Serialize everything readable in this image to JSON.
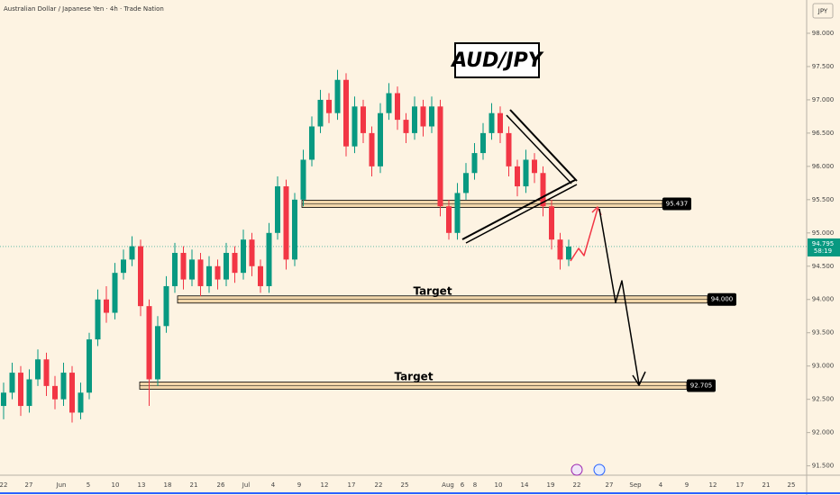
{
  "chart_data": {
    "type": "candlestick",
    "title": "Australian Dollar / Japanese Yen · 4h · Trade Nation",
    "symbol_label": "AUD/JPY",
    "currency": "JPY",
    "up_color": "#089981",
    "down_color": "#f23645",
    "open": [
      92.4,
      92.6,
      92.9,
      92.4,
      92.8,
      93.1,
      92.7,
      92.5,
      92.9,
      92.3,
      92.6,
      93.4,
      94.0,
      93.8,
      94.4,
      94.6,
      94.8,
      93.9,
      92.8,
      93.6,
      94.2,
      94.7,
      94.3,
      94.6,
      94.2,
      94.5,
      94.3,
      94.7,
      94.4,
      94.9,
      94.5,
      94.2,
      95.0,
      95.7,
      94.6,
      95.5,
      96.1,
      96.6,
      97.0,
      96.8,
      97.3,
      96.3,
      96.9,
      96.5,
      96.0,
      96.8,
      97.1,
      96.7,
      96.5,
      96.9,
      96.6,
      96.9,
      95.4,
      95.0,
      95.6,
      95.9,
      96.2,
      96.5,
      96.8,
      96.5,
      96.0,
      95.7,
      96.1,
      95.9,
      95.4,
      94.9,
      94.6
    ],
    "high": [
      92.75,
      93.05,
      93.0,
      92.95,
      93.25,
      93.2,
      92.85,
      93.05,
      93.0,
      92.75,
      93.5,
      94.15,
      94.2,
      94.55,
      94.75,
      94.95,
      94.9,
      94.0,
      93.75,
      94.35,
      94.85,
      94.8,
      94.75,
      94.7,
      94.65,
      94.6,
      94.85,
      94.8,
      95.05,
      95.0,
      94.6,
      95.15,
      95.85,
      95.8,
      95.6,
      96.25,
      96.75,
      97.15,
      97.1,
      97.45,
      97.4,
      97.05,
      97.0,
      96.6,
      96.95,
      97.25,
      97.2,
      96.8,
      97.05,
      97.0,
      97.05,
      97.0,
      95.5,
      95.75,
      96.05,
      96.35,
      96.65,
      96.95,
      96.9,
      96.6,
      96.1,
      96.25,
      96.2,
      96.0,
      95.5,
      95.0,
      94.9
    ],
    "low": [
      92.2,
      92.5,
      92.25,
      92.3,
      92.7,
      92.55,
      92.35,
      92.4,
      92.15,
      92.2,
      92.5,
      93.3,
      93.65,
      93.7,
      94.3,
      94.5,
      93.75,
      92.4,
      92.7,
      93.5,
      94.1,
      94.15,
      94.2,
      94.05,
      94.1,
      94.15,
      94.2,
      94.25,
      94.3,
      94.35,
      94.1,
      94.1,
      94.9,
      94.45,
      94.5,
      95.4,
      96.0,
      96.5,
      96.65,
      96.7,
      96.15,
      96.2,
      96.35,
      95.85,
      95.9,
      96.7,
      96.55,
      96.35,
      96.4,
      96.45,
      96.5,
      95.25,
      94.9,
      94.9,
      95.5,
      95.8,
      96.1,
      96.4,
      96.35,
      95.85,
      95.55,
      95.6,
      95.75,
      95.25,
      94.75,
      94.45,
      94.5
    ],
    "close": [
      92.6,
      92.9,
      92.4,
      92.8,
      93.1,
      92.7,
      92.5,
      92.9,
      92.3,
      92.6,
      93.4,
      94.0,
      93.8,
      94.4,
      94.6,
      94.8,
      93.9,
      92.8,
      93.6,
      94.2,
      94.7,
      94.3,
      94.6,
      94.2,
      94.5,
      94.3,
      94.7,
      94.4,
      94.9,
      94.5,
      94.2,
      95.0,
      95.7,
      94.6,
      95.5,
      96.1,
      96.6,
      97.0,
      96.8,
      97.3,
      96.3,
      96.9,
      96.5,
      96.0,
      96.8,
      97.1,
      96.7,
      96.5,
      96.9,
      96.6,
      96.9,
      95.4,
      95.0,
      95.6,
      95.9,
      96.2,
      96.5,
      96.8,
      96.5,
      96.0,
      95.7,
      96.1,
      95.9,
      95.4,
      94.9,
      94.6,
      94.795
    ],
    "ylim": [
      91.4,
      98.5
    ],
    "yticks": [
      {
        "value": 98.0,
        "label": "98.000"
      },
      {
        "value": 97.5,
        "label": "97.500"
      },
      {
        "value": 97.0,
        "label": "97.000"
      },
      {
        "value": 96.5,
        "label": "96.500"
      },
      {
        "value": 96.0,
        "label": "96.000"
      },
      {
        "value": 95.5,
        "label": "95.500"
      },
      {
        "value": 95.0,
        "label": "95.000"
      },
      {
        "value": 94.5,
        "label": "94.500"
      },
      {
        "value": 94.0,
        "label": "94.000"
      },
      {
        "value": 93.5,
        "label": "93.500"
      },
      {
        "value": 93.0,
        "label": "93.000"
      },
      {
        "value": 92.5,
        "label": "92.500"
      },
      {
        "value": 92.0,
        "label": "92.000"
      },
      {
        "value": 91.5,
        "label": "91.500"
      }
    ],
    "xticks": [
      "22",
      "27",
      "Jun",
      "5",
      "10",
      "13",
      "18",
      "21",
      "26",
      "Jul",
      "4",
      "9",
      "12",
      "17",
      "22",
      "25",
      "Aug",
      "6",
      "8",
      "10",
      "14",
      "19",
      "22",
      "27",
      "Sep",
      "4",
      "9",
      "12",
      "17",
      "21",
      "25"
    ],
    "levels": [
      {
        "value": 95.437,
        "label": "95.437"
      },
      {
        "value": 94.0,
        "label": "94.000"
      },
      {
        "value": 92.705,
        "label": "92.705"
      }
    ],
    "targets": [
      "Target",
      "Target"
    ],
    "last_price": {
      "value": 94.795,
      "label": "94.795"
    },
    "countdown": "58:19"
  }
}
